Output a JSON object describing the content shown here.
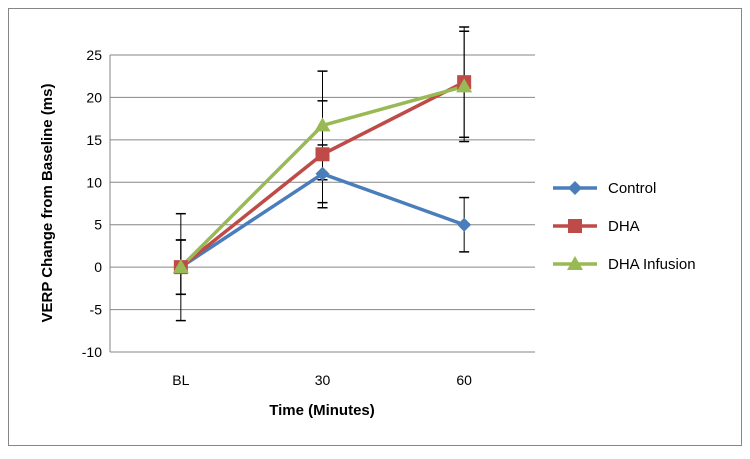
{
  "chart_data": {
    "type": "line",
    "title": "",
    "xlabel": "Time (Minutes)",
    "ylabel": "VERP Change from Baseline (ms)",
    "categories": [
      "BL",
      "30",
      "60"
    ],
    "ylim": [
      -10,
      25
    ],
    "yticks": [
      -10,
      -5,
      0,
      5,
      10,
      15,
      20,
      25
    ],
    "grid": true,
    "legend": "right",
    "series": [
      {
        "name": "Control",
        "values": [
          0,
          11.0,
          5.0
        ],
        "errors": [
          3.2,
          3.4,
          3.2
        ],
        "color": "#4a7ebb",
        "marker": "diamond"
      },
      {
        "name": "DHA",
        "values": [
          0,
          13.3,
          21.8
        ],
        "errors": [
          6.3,
          6.3,
          6.5
        ],
        "color": "#be4b48",
        "marker": "square"
      },
      {
        "name": "DHA Infusion",
        "values": [
          0,
          16.7,
          21.3
        ],
        "errors": [
          3.2,
          6.4,
          6.5
        ],
        "color": "#98b954",
        "marker": "triangle"
      }
    ]
  }
}
